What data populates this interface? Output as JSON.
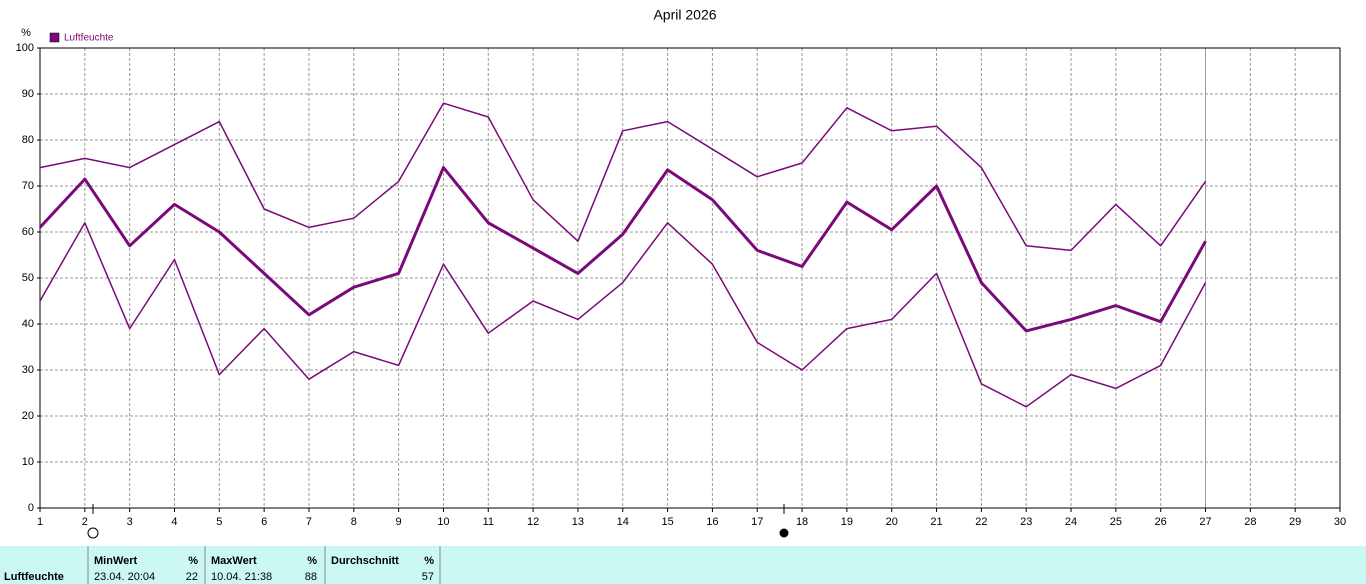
{
  "chart_data": {
    "type": "line",
    "title": "April 2026",
    "ylabel": "%",
    "legend": "Luftfeuchte",
    "x": [
      1,
      2,
      3,
      4,
      5,
      6,
      7,
      8,
      9,
      10,
      11,
      12,
      13,
      14,
      15,
      16,
      17,
      18,
      19,
      20,
      21,
      22,
      23,
      24,
      25,
      26,
      27,
      28,
      29,
      30
    ],
    "xlim": [
      1,
      30
    ],
    "xticks": [
      1,
      2,
      3,
      4,
      5,
      6,
      7,
      8,
      9,
      10,
      11,
      12,
      13,
      14,
      15,
      16,
      17,
      18,
      19,
      20,
      21,
      22,
      23,
      24,
      25,
      26,
      27,
      28,
      29,
      30
    ],
    "ylim": [
      0,
      100
    ],
    "yticks": [
      0,
      10,
      20,
      30,
      40,
      50,
      60,
      70,
      80,
      90,
      100
    ],
    "grid": true,
    "current_x": 27,
    "series": [
      {
        "color": "#7a0a7a",
        "width": 1.5,
        "values": [
          74,
          76,
          74,
          79,
          84,
          65,
          61,
          63,
          71,
          88,
          85,
          67,
          58,
          82,
          84,
          78,
          72,
          75,
          87,
          82,
          83,
          74,
          57,
          56,
          66,
          57,
          71,
          null,
          null,
          null
        ]
      },
      {
        "color": "#7a0a7a",
        "width": 3,
        "values": [
          61,
          71.5,
          57,
          66,
          60,
          51,
          42,
          48,
          51,
          74,
          62,
          56.5,
          51,
          59.5,
          73.5,
          67,
          56,
          52.5,
          66.5,
          60.5,
          70,
          49,
          38.5,
          41,
          44,
          40.5,
          58,
          null,
          null,
          null
        ]
      },
      {
        "color": "#7a0a7a",
        "width": 1.5,
        "values": [
          45,
          62,
          39,
          54,
          29,
          39,
          28,
          34,
          31,
          53,
          38,
          45,
          41,
          49,
          62,
          53,
          36,
          30,
          39,
          41,
          51,
          27,
          22,
          29,
          26,
          31,
          49,
          null,
          null,
          null
        ]
      }
    ]
  },
  "stats": {
    "label": "Luftfeuchte",
    "min": {
      "header": "MinWert",
      "unit": "%",
      "time": "23.04.  20:04",
      "value": 22
    },
    "max": {
      "header": "MaxWert",
      "unit": "%",
      "time": "10.04.  21:38",
      "value": 88
    },
    "avg": {
      "header": "Durchschnitt",
      "unit": "%",
      "value": 57
    }
  }
}
